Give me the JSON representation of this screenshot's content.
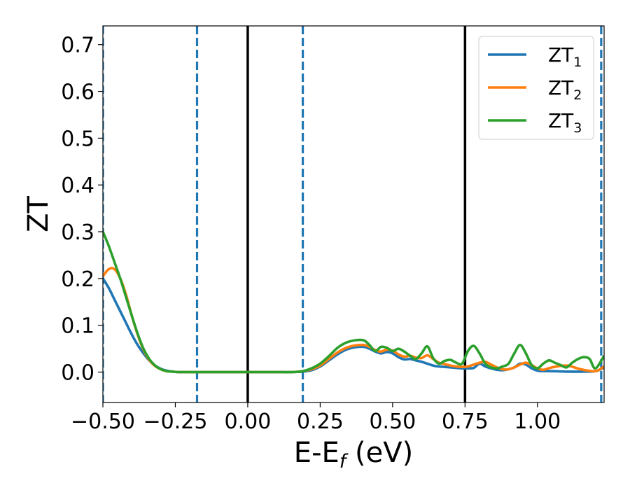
{
  "chart_data": {
    "type": "line",
    "xlabel": "E-E",
    "xlabel_sub": "f",
    "xlabel_unit": " (eV)",
    "ylabel": "ZT",
    "xlim": [
      -0.5,
      1.23
    ],
    "ylim": [
      -0.065,
      0.74
    ],
    "xticks": [
      -0.5,
      -0.25,
      0.0,
      0.25,
      0.5,
      0.75,
      1.0
    ],
    "xtick_labels": [
      "−0.50",
      "−0.25",
      "0.00",
      "0.25",
      "0.50",
      "0.75",
      "1.00"
    ],
    "yticks": [
      0.0,
      0.1,
      0.2,
      0.3,
      0.4,
      0.5,
      0.6,
      0.7
    ],
    "ytick_labels": [
      "0.0",
      "0.1",
      "0.2",
      "0.3",
      "0.4",
      "0.5",
      "0.6",
      "0.7"
    ],
    "vlines_solid": [
      0.0,
      0.75
    ],
    "vlines_dashed": [
      -0.5,
      -0.175,
      0.19,
      1.22
    ],
    "legend_position": "top-right",
    "series": [
      {
        "name": "ZT",
        "name_sub": "1",
        "color": "#1f77b4",
        "x": [
          -0.5,
          -0.48,
          -0.46,
          -0.44,
          -0.42,
          -0.4,
          -0.38,
          -0.36,
          -0.34,
          -0.32,
          -0.3,
          -0.28,
          -0.26,
          -0.24,
          -0.22,
          -0.2,
          -0.15,
          -0.1,
          -0.05,
          0.0,
          0.05,
          0.1,
          0.15,
          0.19,
          0.22,
          0.25,
          0.28,
          0.31,
          0.34,
          0.37,
          0.4,
          0.42,
          0.44,
          0.46,
          0.48,
          0.5,
          0.52,
          0.54,
          0.56,
          0.58,
          0.6,
          0.62,
          0.64,
          0.66,
          0.68,
          0.7,
          0.72,
          0.74,
          0.76,
          0.78,
          0.8,
          0.82,
          0.84,
          0.86,
          0.88,
          0.9,
          0.92,
          0.94,
          0.96,
          0.98,
          1.0,
          1.02,
          1.05,
          1.1,
          1.15,
          1.2,
          1.23
        ],
        "y": [
          0.2,
          0.18,
          0.155,
          0.13,
          0.105,
          0.08,
          0.058,
          0.04,
          0.025,
          0.014,
          0.007,
          0.003,
          0.001,
          0.0,
          0.0,
          0.0,
          0.0,
          0.0,
          0.0,
          0.0,
          0.0,
          0.0,
          0.0,
          0.001,
          0.004,
          0.012,
          0.025,
          0.038,
          0.048,
          0.053,
          0.054,
          0.05,
          0.044,
          0.04,
          0.043,
          0.04,
          0.032,
          0.027,
          0.028,
          0.025,
          0.022,
          0.018,
          0.014,
          0.012,
          0.011,
          0.01,
          0.009,
          0.008,
          0.008,
          0.009,
          0.018,
          0.012,
          0.008,
          0.005,
          0.004,
          0.006,
          0.01,
          0.018,
          0.016,
          0.008,
          0.003,
          0.002,
          0.002,
          0.001,
          0.001,
          0.002,
          0.01
        ]
      },
      {
        "name": "ZT",
        "name_sub": "2",
        "color": "#ff7f0e",
        "x": [
          -0.5,
          -0.48,
          -0.46,
          -0.44,
          -0.42,
          -0.4,
          -0.38,
          -0.36,
          -0.34,
          -0.32,
          -0.3,
          -0.28,
          -0.26,
          -0.24,
          -0.22,
          -0.2,
          -0.15,
          -0.1,
          -0.05,
          0.0,
          0.05,
          0.1,
          0.15,
          0.19,
          0.22,
          0.25,
          0.28,
          0.31,
          0.34,
          0.37,
          0.4,
          0.42,
          0.44,
          0.46,
          0.48,
          0.5,
          0.52,
          0.54,
          0.56,
          0.58,
          0.6,
          0.62,
          0.64,
          0.66,
          0.68,
          0.7,
          0.72,
          0.74,
          0.76,
          0.78,
          0.8,
          0.82,
          0.84,
          0.86,
          0.88,
          0.9,
          0.92,
          0.94,
          0.96,
          0.98,
          1.0,
          1.02,
          1.05,
          1.1,
          1.15,
          1.2,
          1.23
        ],
        "y": [
          0.205,
          0.22,
          0.22,
          0.2,
          0.165,
          0.12,
          0.08,
          0.048,
          0.026,
          0.013,
          0.006,
          0.002,
          0.001,
          0.0,
          0.0,
          0.0,
          0.0,
          0.0,
          0.0,
          0.0,
          0.0,
          0.0,
          0.0,
          0.002,
          0.006,
          0.014,
          0.028,
          0.042,
          0.052,
          0.057,
          0.058,
          0.054,
          0.047,
          0.044,
          0.048,
          0.046,
          0.038,
          0.033,
          0.035,
          0.031,
          0.03,
          0.036,
          0.028,
          0.02,
          0.017,
          0.014,
          0.012,
          0.011,
          0.012,
          0.016,
          0.02,
          0.022,
          0.016,
          0.01,
          0.006,
          0.006,
          0.01,
          0.016,
          0.02,
          0.015,
          0.008,
          0.005,
          0.01,
          0.014,
          0.006,
          0.002,
          0.012
        ]
      },
      {
        "name": "ZT",
        "name_sub": "3",
        "color": "#2ca02c",
        "x": [
          -0.5,
          -0.48,
          -0.46,
          -0.44,
          -0.42,
          -0.4,
          -0.38,
          -0.36,
          -0.34,
          -0.32,
          -0.3,
          -0.28,
          -0.26,
          -0.24,
          -0.22,
          -0.2,
          -0.15,
          -0.1,
          -0.05,
          0.0,
          0.05,
          0.1,
          0.15,
          0.19,
          0.22,
          0.25,
          0.28,
          0.31,
          0.34,
          0.37,
          0.4,
          0.42,
          0.44,
          0.46,
          0.48,
          0.5,
          0.52,
          0.54,
          0.56,
          0.58,
          0.6,
          0.62,
          0.64,
          0.66,
          0.68,
          0.7,
          0.72,
          0.74,
          0.76,
          0.78,
          0.8,
          0.82,
          0.84,
          0.86,
          0.88,
          0.9,
          0.92,
          0.94,
          0.96,
          0.98,
          1.0,
          1.02,
          1.04,
          1.06,
          1.08,
          1.1,
          1.12,
          1.14,
          1.16,
          1.18,
          1.2,
          1.23
        ],
        "y": [
          0.3,
          0.27,
          0.235,
          0.2,
          0.16,
          0.12,
          0.082,
          0.05,
          0.028,
          0.014,
          0.006,
          0.002,
          0.001,
          0.0,
          0.0,
          0.0,
          0.0,
          0.0,
          0.0,
          0.0,
          0.0,
          0.0,
          0.0,
          0.002,
          0.008,
          0.018,
          0.034,
          0.052,
          0.063,
          0.068,
          0.068,
          0.058,
          0.045,
          0.054,
          0.052,
          0.045,
          0.05,
          0.044,
          0.035,
          0.028,
          0.04,
          0.055,
          0.03,
          0.018,
          0.024,
          0.026,
          0.02,
          0.018,
          0.045,
          0.056,
          0.04,
          0.018,
          0.01,
          0.008,
          0.012,
          0.018,
          0.04,
          0.058,
          0.04,
          0.015,
          0.008,
          0.018,
          0.025,
          0.02,
          0.015,
          0.01,
          0.02,
          0.028,
          0.032,
          0.028,
          0.008,
          0.035
        ]
      }
    ]
  }
}
